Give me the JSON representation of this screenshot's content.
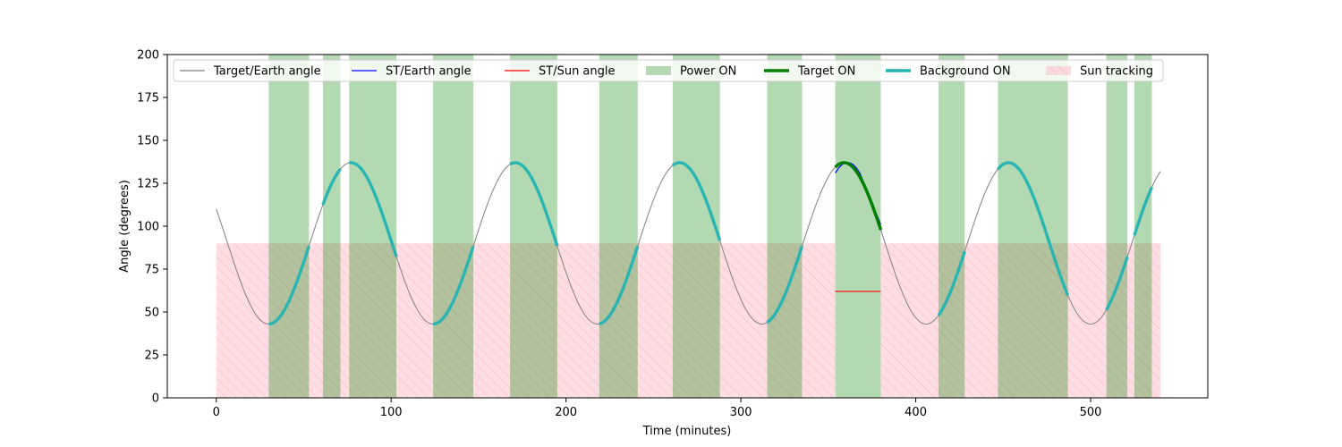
{
  "chart_data": {
    "type": "line",
    "title": "",
    "xlabel": "Time (minutes)",
    "ylabel": "Angle (degrees)",
    "xlim": [
      -28,
      567
    ],
    "ylim": [
      0,
      200
    ],
    "x_ticks": [
      0,
      100,
      200,
      300,
      400,
      500
    ],
    "y_ticks": [
      0,
      25,
      50,
      75,
      100,
      125,
      150,
      175,
      200
    ],
    "grid": false,
    "legend_position": "top",
    "colors": {
      "target_earth": "#808080",
      "st_earth": "#0000ff",
      "st_sun": "#ff0000",
      "power_on": "#008000",
      "target_on": "#008000",
      "background_on": "#1fb5b5",
      "sun_tracking": "#ffb6c1"
    },
    "legend": [
      {
        "label": "Target/Earth angle",
        "kind": "line",
        "key": "target_earth"
      },
      {
        "label": "ST/Earth angle",
        "kind": "line",
        "key": "st_earth"
      },
      {
        "label": "ST/Sun angle",
        "kind": "line",
        "key": "st_sun"
      },
      {
        "label": "Power ON",
        "kind": "patch",
        "key": "power_on"
      },
      {
        "label": "Target ON",
        "kind": "thick",
        "key": "target_on"
      },
      {
        "label": "Background ON",
        "kind": "thick",
        "key": "background_on"
      },
      {
        "label": "Sun tracking",
        "kind": "hatch",
        "key": "sun_tracking"
      }
    ],
    "target_earth_curve": {
      "type": "sinusoid",
      "center": 90,
      "amplitude": 47,
      "period_minutes": 94,
      "phase_peak_minute": 77,
      "x_range": [
        0,
        540
      ]
    },
    "power_on_intervals": [
      [
        30,
        53
      ],
      [
        61,
        71
      ],
      [
        76,
        103
      ],
      [
        124,
        147
      ],
      [
        168,
        195
      ],
      [
        219,
        241
      ],
      [
        261,
        288
      ],
      [
        315,
        335
      ],
      [
        354,
        380
      ],
      [
        413,
        428
      ],
      [
        447,
        487
      ],
      [
        509,
        521
      ],
      [
        525,
        535
      ]
    ],
    "background_on_intervals": [
      [
        30,
        53
      ],
      [
        61,
        71
      ],
      [
        76,
        103
      ],
      [
        124,
        147
      ],
      [
        168,
        195
      ],
      [
        219,
        241
      ],
      [
        261,
        288
      ],
      [
        315,
        335
      ],
      [
        413,
        428
      ],
      [
        447,
        487
      ],
      [
        509,
        521
      ],
      [
        525,
        535
      ]
    ],
    "target_on_intervals": [
      [
        354,
        380
      ]
    ],
    "sun_tracking": {
      "angle": 90,
      "intervals": [
        [
          0,
          354
        ],
        [
          380,
          540
        ]
      ]
    },
    "st_earth_segment": {
      "x": [
        354,
        356,
        358,
        360,
        362,
        364,
        366,
        368,
        370,
        372,
        374,
        376,
        378,
        380
      ],
      "y": [
        131,
        134,
        136,
        137,
        137,
        136,
        134,
        131,
        126,
        121,
        116,
        111,
        106,
        101
      ]
    },
    "st_sun_segment": {
      "x": [
        354,
        380
      ],
      "y": [
        62,
        62
      ]
    }
  }
}
